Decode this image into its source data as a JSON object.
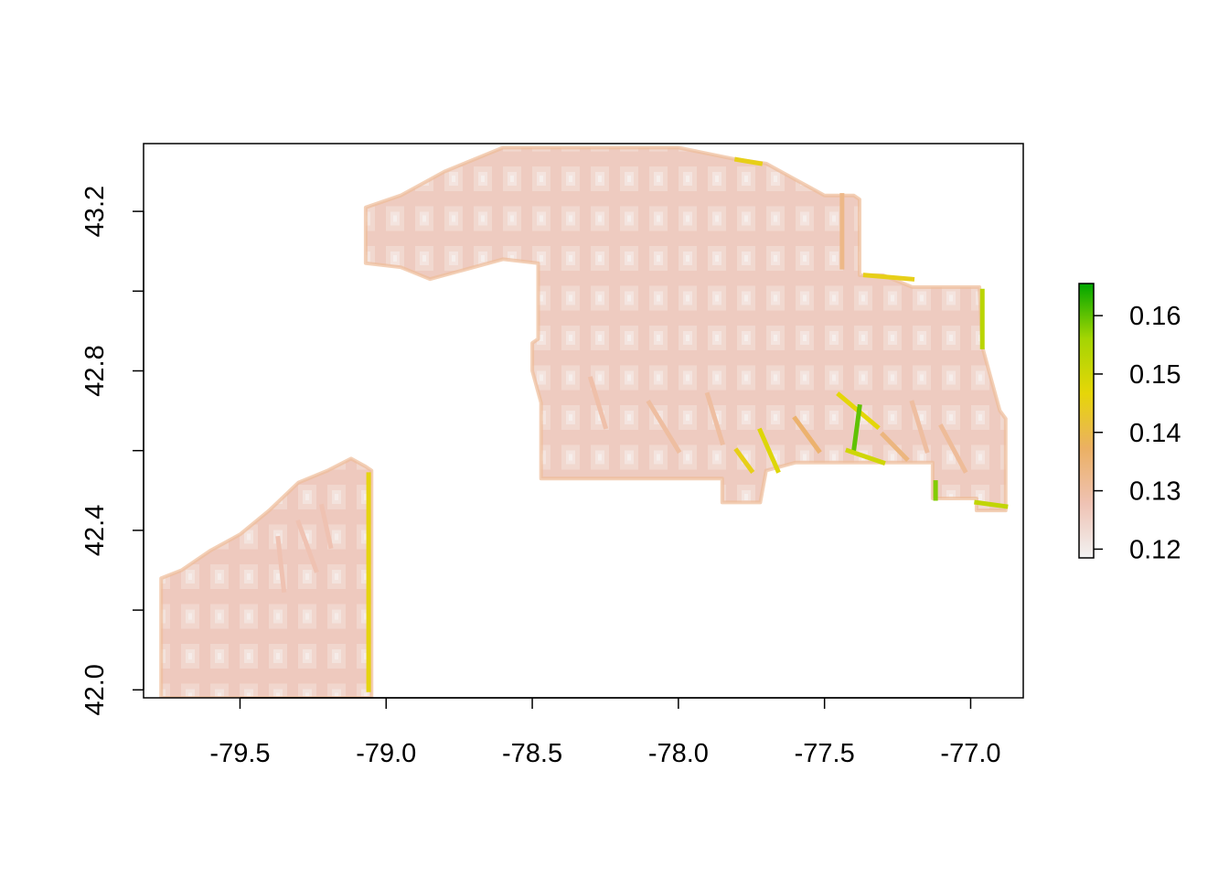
{
  "chart_data": {
    "type": "heatmap",
    "title": "",
    "xlabel": "",
    "ylabel": "",
    "xlim": [
      -79.83,
      -76.82
    ],
    "ylim": [
      41.98,
      43.37
    ],
    "x_ticks": [
      {
        "value": -79.5,
        "label": "-79.5"
      },
      {
        "value": -79.0,
        "label": "-79.0"
      },
      {
        "value": -78.5,
        "label": "-78.5"
      },
      {
        "value": -78.0,
        "label": "-78.0"
      },
      {
        "value": -77.5,
        "label": "-77.5"
      },
      {
        "value": -77.0,
        "label": "-77.0"
      }
    ],
    "y_ticks": [
      {
        "value": 42.0,
        "label": "42.0",
        "labeled": true
      },
      {
        "value": 42.2,
        "label": "",
        "labeled": false
      },
      {
        "value": 42.4,
        "label": "42.4",
        "labeled": true
      },
      {
        "value": 42.6,
        "label": "",
        "labeled": false
      },
      {
        "value": 42.8,
        "label": "42.8",
        "labeled": true
      },
      {
        "value": 43.0,
        "label": "",
        "labeled": false
      },
      {
        "value": 43.2,
        "label": "43.2",
        "labeled": true
      }
    ],
    "legend": {
      "position": "right",
      "range": [
        0.1185,
        0.1655
      ],
      "ticks": [
        {
          "value": 0.12,
          "label": "0.12"
        },
        {
          "value": 0.13,
          "label": "0.13"
        },
        {
          "value": 0.14,
          "label": "0.14"
        },
        {
          "value": 0.15,
          "label": "0.15"
        },
        {
          "value": 0.16,
          "label": "0.16"
        }
      ],
      "colors": [
        "#f2f2f2",
        "#efc2b3",
        "#ebb063",
        "#e6d608",
        "#a4d503",
        "#00a600"
      ]
    },
    "regions": [
      {
        "name": "southwest-block",
        "base_value": 0.124,
        "outline": [
          [
            -79.77,
            41.98
          ],
          [
            -79.77,
            42.28
          ],
          [
            -79.7,
            42.3
          ],
          [
            -79.6,
            42.35
          ],
          [
            -79.5,
            42.39
          ],
          [
            -79.4,
            42.45
          ],
          [
            -79.3,
            42.52
          ],
          [
            -79.2,
            42.55
          ],
          [
            -79.12,
            42.58
          ],
          [
            -79.07,
            42.56
          ],
          [
            -79.05,
            42.55
          ],
          [
            -79.05,
            41.98
          ]
        ],
        "streaks": [
          {
            "from": [
              -79.06,
              42.54
            ],
            "to": [
              -79.06,
              42.0
            ],
            "value": 0.146
          },
          {
            "from": [
              -79.3,
              42.42
            ],
            "to": [
              -79.24,
              42.3
            ],
            "value": 0.128
          },
          {
            "from": [
              -79.37,
              42.38
            ],
            "to": [
              -79.35,
              42.25
            ],
            "value": 0.128
          },
          {
            "from": [
              -79.22,
              42.46
            ],
            "to": [
              -79.19,
              42.36
            ],
            "value": 0.128
          }
        ]
      },
      {
        "name": "northeast-block",
        "base_value": 0.122,
        "outline": [
          [
            -79.07,
            43.07
          ],
          [
            -79.07,
            43.21
          ],
          [
            -78.95,
            43.24
          ],
          [
            -78.8,
            43.3
          ],
          [
            -78.6,
            43.36
          ],
          [
            -78.3,
            43.36
          ],
          [
            -78.0,
            43.36
          ],
          [
            -77.8,
            43.33
          ],
          [
            -77.7,
            43.32
          ],
          [
            -77.6,
            43.28
          ],
          [
            -77.5,
            43.24
          ],
          [
            -77.4,
            43.24
          ],
          [
            -77.38,
            43.23
          ],
          [
            -77.38,
            43.04
          ],
          [
            -77.3,
            43.04
          ],
          [
            -77.2,
            43.01
          ],
          [
            -76.97,
            43.01
          ],
          [
            -76.96,
            42.86
          ],
          [
            -76.93,
            42.78
          ],
          [
            -76.9,
            42.7
          ],
          [
            -76.88,
            42.68
          ],
          [
            -76.88,
            42.45
          ],
          [
            -76.98,
            42.45
          ],
          [
            -76.98,
            42.48
          ],
          [
            -77.13,
            42.48
          ],
          [
            -77.13,
            42.57
          ],
          [
            -77.6,
            42.57
          ],
          [
            -77.7,
            42.55
          ],
          [
            -77.72,
            42.47
          ],
          [
            -77.85,
            42.47
          ],
          [
            -77.85,
            42.53
          ],
          [
            -78.47,
            42.53
          ],
          [
            -78.47,
            42.72
          ],
          [
            -78.5,
            42.8
          ],
          [
            -78.5,
            42.87
          ],
          [
            -78.48,
            42.88
          ],
          [
            -78.48,
            43.07
          ],
          [
            -78.6,
            43.08
          ],
          [
            -78.75,
            43.05
          ],
          [
            -78.85,
            43.03
          ],
          [
            -78.95,
            43.06
          ]
        ],
        "streaks": [
          {
            "from": [
              -77.44,
              43.24
            ],
            "to": [
              -77.44,
              43.06
            ],
            "value": 0.133
          },
          {
            "from": [
              -77.36,
              43.04
            ],
            "to": [
              -77.2,
              43.03
            ],
            "value": 0.145
          },
          {
            "from": [
              -76.96,
              43.0
            ],
            "to": [
              -76.96,
              42.86
            ],
            "value": 0.153
          },
          {
            "from": [
              -77.8,
              43.33
            ],
            "to": [
              -77.72,
              43.32
            ],
            "value": 0.145
          },
          {
            "from": [
              -77.12,
              42.52
            ],
            "to": [
              -77.12,
              42.48
            ],
            "value": 0.158
          },
          {
            "from": [
              -76.98,
              42.47
            ],
            "to": [
              -76.88,
              42.46
            ],
            "value": 0.152
          },
          {
            "from": [
              -77.45,
              42.74
            ],
            "to": [
              -77.32,
              42.66
            ],
            "value": 0.147
          },
          {
            "from": [
              -77.38,
              42.71
            ],
            "to": [
              -77.4,
              42.6
            ],
            "value": 0.16
          },
          {
            "from": [
              -77.72,
              42.65
            ],
            "to": [
              -77.66,
              42.55
            ],
            "value": 0.148
          },
          {
            "from": [
              -77.8,
              42.6
            ],
            "to": [
              -77.75,
              42.55
            ],
            "value": 0.145
          },
          {
            "from": [
              -77.42,
              42.6
            ],
            "to": [
              -77.3,
              42.57
            ],
            "value": 0.15
          },
          {
            "from": [
              -77.6,
              42.68
            ],
            "to": [
              -77.52,
              42.6
            ],
            "value": 0.136
          },
          {
            "from": [
              -78.1,
              42.72
            ],
            "to": [
              -78.0,
              42.6
            ],
            "value": 0.13
          },
          {
            "from": [
              -78.3,
              42.78
            ],
            "to": [
              -78.25,
              42.66
            ],
            "value": 0.129
          },
          {
            "from": [
              -77.9,
              42.74
            ],
            "to": [
              -77.85,
              42.62
            ],
            "value": 0.13
          },
          {
            "from": [
              -77.2,
              42.72
            ],
            "to": [
              -77.15,
              42.6
            ],
            "value": 0.13
          },
          {
            "from": [
              -77.1,
              42.66
            ],
            "to": [
              -77.02,
              42.55
            ],
            "value": 0.131
          },
          {
            "from": [
              -77.3,
              42.64
            ],
            "to": [
              -77.22,
              42.58
            ],
            "value": 0.134
          }
        ]
      }
    ]
  }
}
